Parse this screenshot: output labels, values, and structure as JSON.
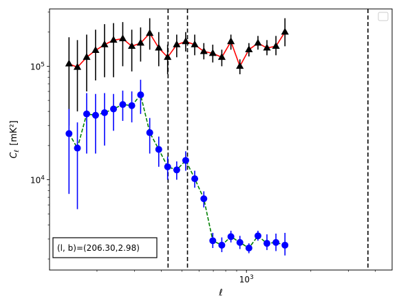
{
  "chart_data": {
    "type": "scatter",
    "xscale": "log",
    "yscale": "log",
    "xlim": [
      120,
      4800
    ],
    "ylim": [
      1600,
      320000
    ],
    "xlabel": "ℓ",
    "ylabel_main": "C",
    "ylabel_sub": "ℓ",
    "ylabel_unit": "[mK²]",
    "xticks": [
      {
        "value": 1000,
        "base": "10",
        "exp": "3"
      }
    ],
    "yticks": [
      {
        "value": 10000,
        "base": "10",
        "exp": "4"
      },
      {
        "value": 100000,
        "base": "10",
        "exp": "5"
      }
    ],
    "legend": {
      "placement": "top-right",
      "entries": []
    },
    "vlines": [
      430,
      530,
      3700
    ],
    "annotation": "(l, b)=(206.30,2.98)",
    "series": [
      {
        "marker": "triangle",
        "marker_color": "#000000",
        "line_color": "#ff0000",
        "line_style": "solid",
        "errorbar_color": "#000000",
        "points": [
          {
            "x": 148,
            "y": 105000,
            "lo": 30000,
            "hi": 180000
          },
          {
            "x": 162,
            "y": 98000,
            "lo": 40000,
            "hi": 170000
          },
          {
            "x": 179,
            "y": 120000,
            "lo": 60000,
            "hi": 190000
          },
          {
            "x": 197,
            "y": 138000,
            "lo": 75000,
            "hi": 210000
          },
          {
            "x": 217,
            "y": 155000,
            "lo": 80000,
            "hi": 235000
          },
          {
            "x": 239,
            "y": 170000,
            "lo": 80000,
            "hi": 240000
          },
          {
            "x": 264,
            "y": 175000,
            "lo": 100000,
            "hi": 245000
          },
          {
            "x": 291,
            "y": 150000,
            "lo": 90000,
            "hi": 210000
          },
          {
            "x": 320,
            "y": 160000,
            "lo": 110000,
            "hi": 220000
          },
          {
            "x": 353,
            "y": 195000,
            "lo": 140000,
            "hi": 265000
          },
          {
            "x": 389,
            "y": 145000,
            "lo": 100000,
            "hi": 200000
          },
          {
            "x": 428,
            "y": 120000,
            "lo": 85000,
            "hi": 155000
          },
          {
            "x": 472,
            "y": 155000,
            "lo": 120000,
            "hi": 190000
          },
          {
            "x": 520,
            "y": 165000,
            "lo": 135000,
            "hi": 200000
          },
          {
            "x": 573,
            "y": 155000,
            "lo": 125000,
            "hi": 190000
          },
          {
            "x": 632,
            "y": 135000,
            "lo": 115000,
            "hi": 160000
          },
          {
            "x": 696,
            "y": 130000,
            "lo": 108000,
            "hi": 155000
          },
          {
            "x": 767,
            "y": 120000,
            "lo": 100000,
            "hi": 140000
          },
          {
            "x": 846,
            "y": 165000,
            "lo": 140000,
            "hi": 190000
          },
          {
            "x": 932,
            "y": 100000,
            "lo": 85000,
            "hi": 115000
          },
          {
            "x": 1027,
            "y": 140000,
            "lo": 122000,
            "hi": 160000
          },
          {
            "x": 1132,
            "y": 160000,
            "lo": 140000,
            "hi": 185000
          },
          {
            "x": 1247,
            "y": 145000,
            "lo": 125000,
            "hi": 170000
          },
          {
            "x": 1374,
            "y": 150000,
            "lo": 125000,
            "hi": 185000
          },
          {
            "x": 1514,
            "y": 200000,
            "lo": 150000,
            "hi": 265000
          }
        ]
      },
      {
        "marker": "circle",
        "marker_color": "#0000ff",
        "line_color": "#008000",
        "line_style": "dashed",
        "errorbar_color": "#0000ff",
        "points": [
          {
            "x": 148,
            "y": 25500,
            "lo": 7500,
            "hi": 42000
          },
          {
            "x": 162,
            "y": 19000,
            "lo": 5500,
            "hi": 32000
          },
          {
            "x": 179,
            "y": 38000,
            "lo": 17000,
            "hi": 58000
          },
          {
            "x": 197,
            "y": 37000,
            "lo": 17000,
            "hi": 57000
          },
          {
            "x": 217,
            "y": 39000,
            "lo": 20000,
            "hi": 58000
          },
          {
            "x": 239,
            "y": 42000,
            "lo": 27000,
            "hi": 57000
          },
          {
            "x": 264,
            "y": 46000,
            "lo": 33000,
            "hi": 61000
          },
          {
            "x": 291,
            "y": 45000,
            "lo": 32000,
            "hi": 60000
          },
          {
            "x": 320,
            "y": 56000,
            "lo": 38000,
            "hi": 76000
          },
          {
            "x": 353,
            "y": 26000,
            "lo": 17000,
            "hi": 35000
          },
          {
            "x": 389,
            "y": 18500,
            "lo": 13000,
            "hi": 24000
          },
          {
            "x": 428,
            "y": 13000,
            "lo": 10000,
            "hi": 16000
          },
          {
            "x": 472,
            "y": 12200,
            "lo": 10000,
            "hi": 14500
          },
          {
            "x": 520,
            "y": 14800,
            "lo": 12000,
            "hi": 17800
          },
          {
            "x": 573,
            "y": 10200,
            "lo": 8500,
            "hi": 12000
          },
          {
            "x": 632,
            "y": 6800,
            "lo": 5700,
            "hi": 7900
          },
          {
            "x": 696,
            "y": 2900,
            "lo": 2500,
            "hi": 3400
          },
          {
            "x": 767,
            "y": 2650,
            "lo": 2300,
            "hi": 3100
          },
          {
            "x": 846,
            "y": 3150,
            "lo": 2800,
            "hi": 3550
          },
          {
            "x": 932,
            "y": 2800,
            "lo": 2450,
            "hi": 3200
          },
          {
            "x": 1027,
            "y": 2500,
            "lo": 2250,
            "hi": 2750
          },
          {
            "x": 1132,
            "y": 3200,
            "lo": 2900,
            "hi": 3550
          },
          {
            "x": 1247,
            "y": 2750,
            "lo": 2400,
            "hi": 3300
          },
          {
            "x": 1374,
            "y": 2800,
            "lo": 2350,
            "hi": 3350
          },
          {
            "x": 1514,
            "y": 2650,
            "lo": 2150,
            "hi": 3400
          }
        ]
      }
    ]
  }
}
